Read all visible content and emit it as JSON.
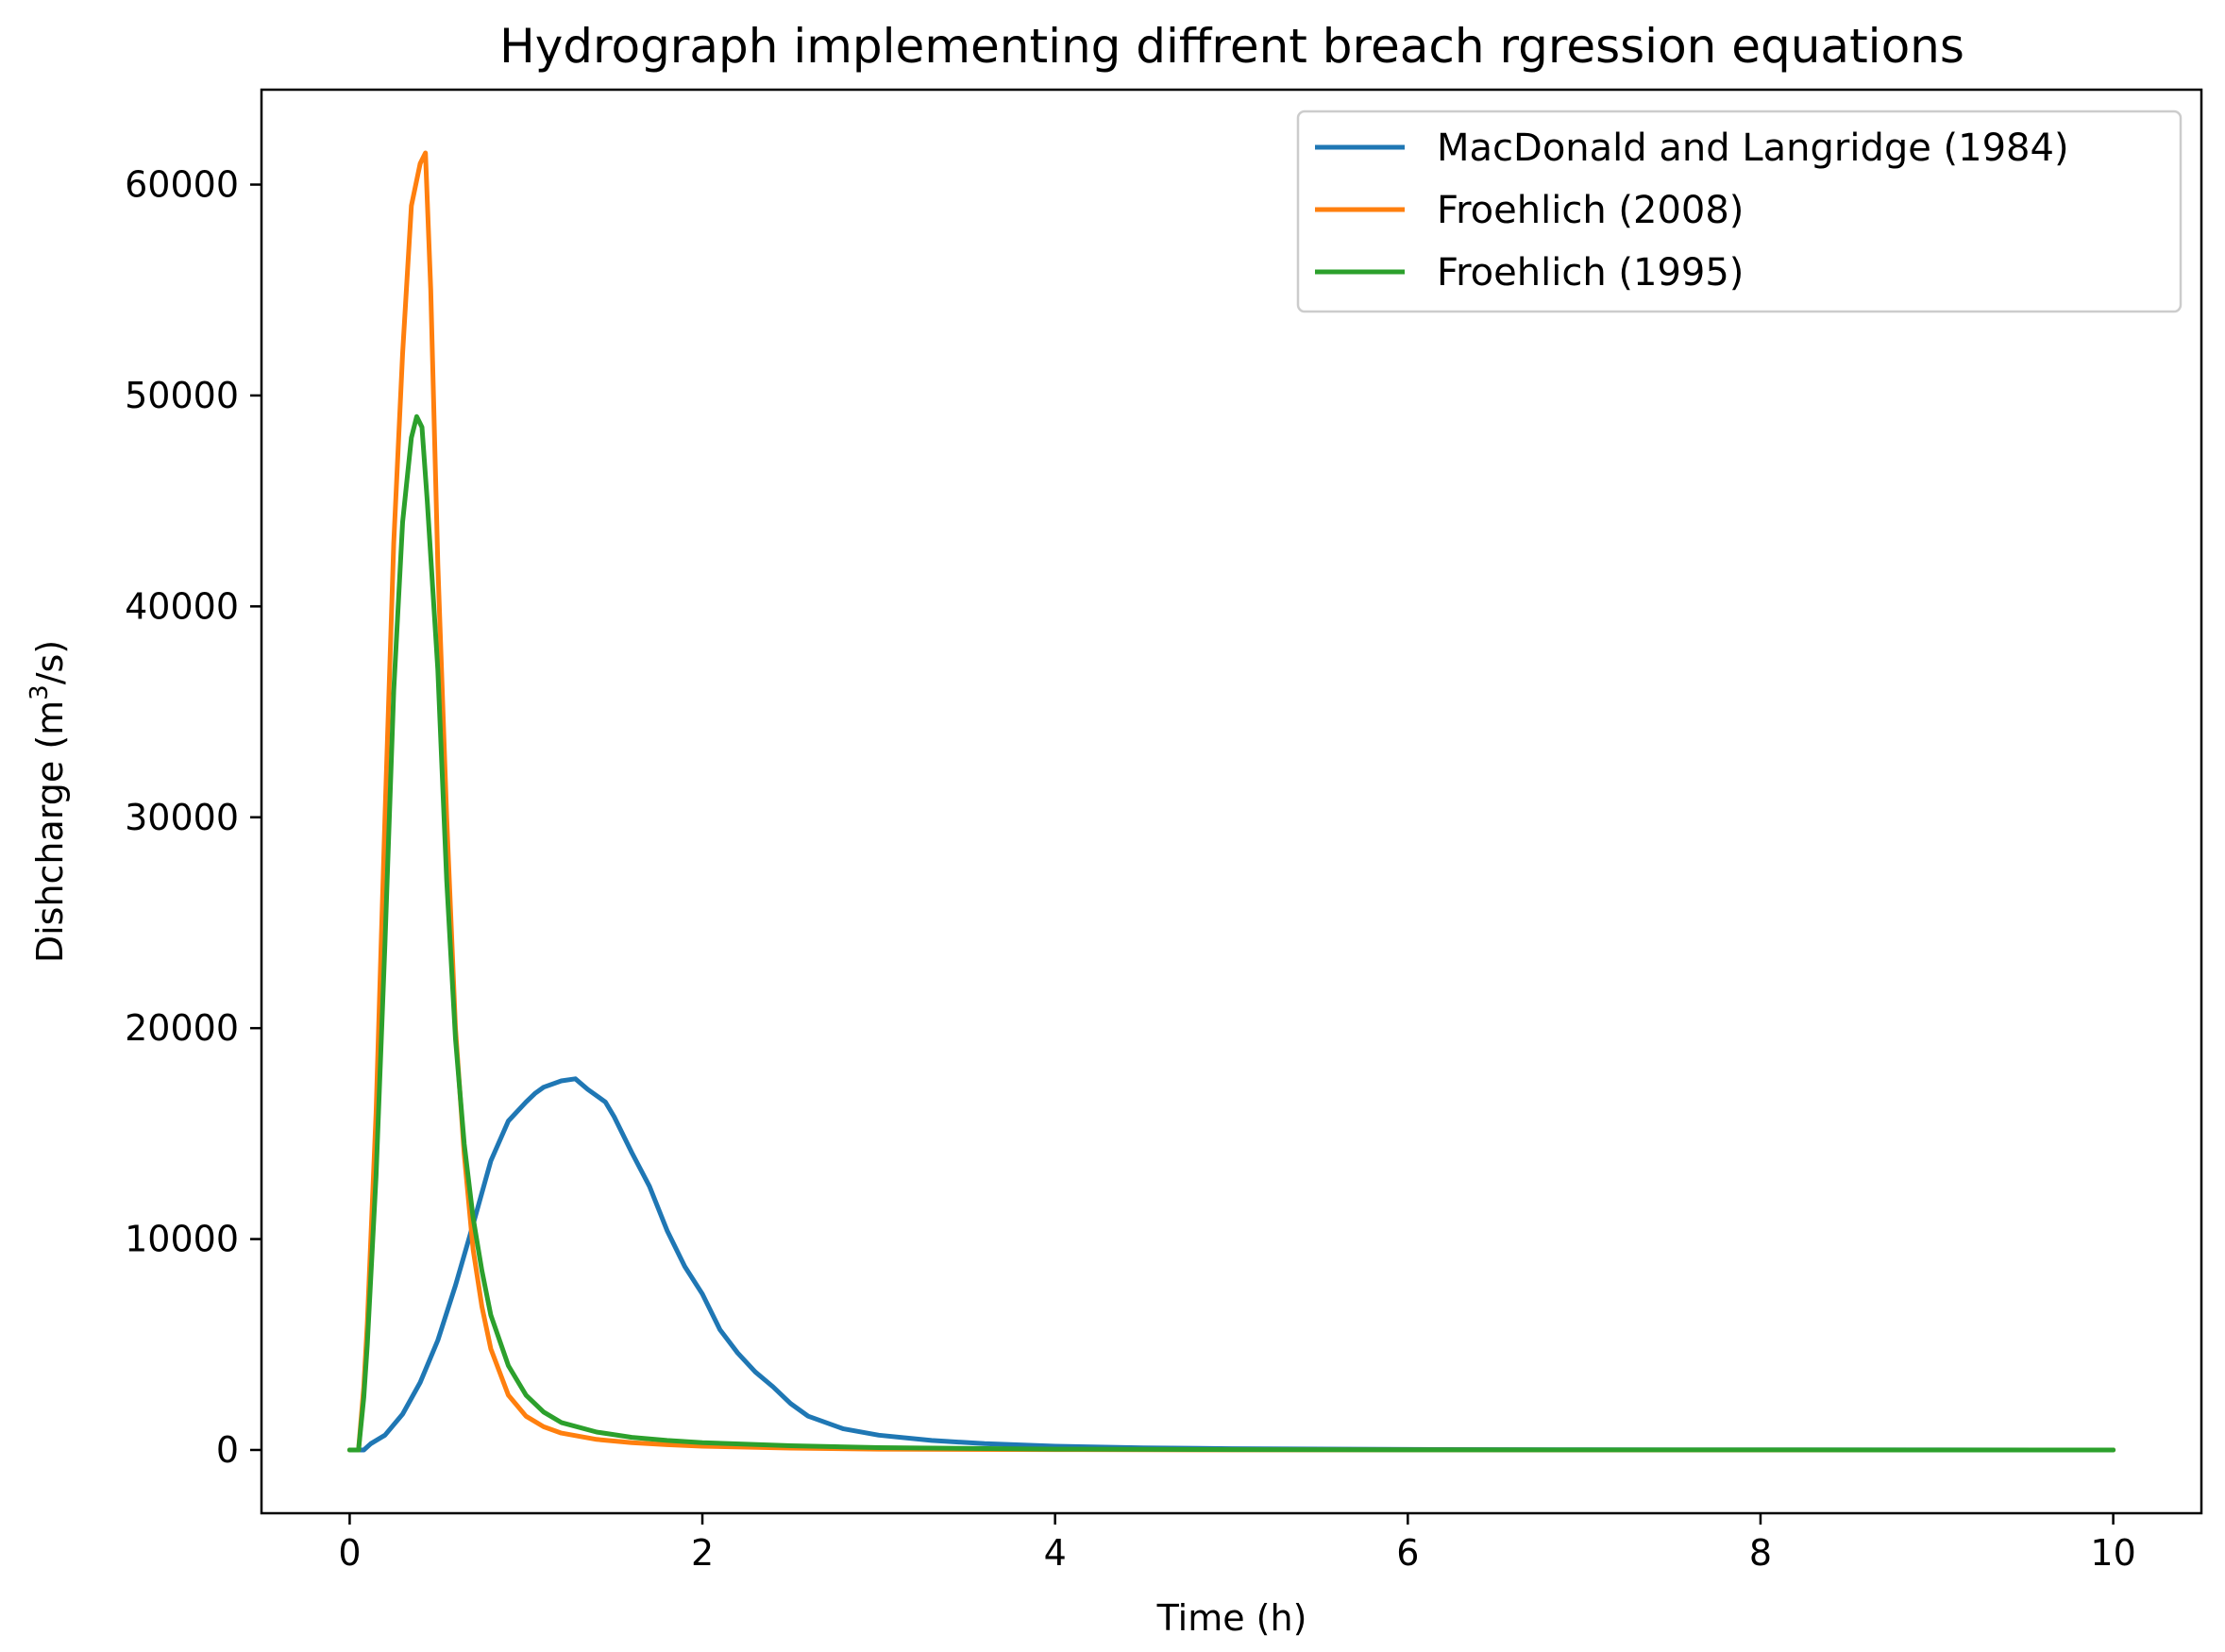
{
  "chart_data": {
    "type": "line",
    "title": "Hydrograph implementing diffrent breach rgression equations",
    "xlabel": "Time (h)",
    "ylabel": "Dishcharge (m",
    "ylabel_superscript": "3",
    "ylabel_suffix": "/s)",
    "xlim": [
      -0.5,
      10.5
    ],
    "ylim": [
      -3000,
      64500
    ],
    "xticks": [
      0,
      2,
      4,
      6,
      8,
      10
    ],
    "yticks": [
      0,
      10000,
      20000,
      30000,
      40000,
      50000,
      60000
    ],
    "grid": false,
    "legend_position": "top-right",
    "series": [
      {
        "name": "MacDonald and Langridge (1984)",
        "color": "#1f77b4",
        "x": [
          0,
          0.08,
          0.12,
          0.2,
          0.3,
          0.4,
          0.5,
          0.6,
          0.7,
          0.8,
          0.9,
          1.0,
          1.05,
          1.1,
          1.2,
          1.28,
          1.35,
          1.45,
          1.5,
          1.6,
          1.7,
          1.8,
          1.9,
          2.0,
          2.1,
          2.2,
          2.3,
          2.4,
          2.5,
          2.6,
          2.8,
          3.0,
          3.3,
          3.6,
          4.0,
          4.5,
          5.0,
          6.0,
          7.0,
          8.0,
          9.0,
          10.0
        ],
        "y": [
          0,
          0,
          300,
          700,
          1700,
          3200,
          5200,
          7800,
          10700,
          13700,
          15600,
          16500,
          16900,
          17200,
          17500,
          17600,
          17100,
          16500,
          15800,
          14100,
          12500,
          10400,
          8700,
          7400,
          5700,
          4600,
          3700,
          3000,
          2200,
          1600,
          1000,
          700,
          450,
          300,
          180,
          100,
          60,
          25,
          10,
          5,
          2,
          0
        ]
      },
      {
        "name": "Froehlich (2008)",
        "color": "#ff7f0e",
        "x": [
          0,
          0.05,
          0.08,
          0.1,
          0.15,
          0.2,
          0.25,
          0.3,
          0.35,
          0.4,
          0.43,
          0.46,
          0.5,
          0.55,
          0.6,
          0.65,
          0.7,
          0.75,
          0.8,
          0.9,
          1.0,
          1.1,
          1.2,
          1.4,
          1.6,
          1.8,
          2.0,
          2.5,
          3.0,
          4.0,
          5.0,
          6.0,
          8.0,
          10.0
        ],
        "y": [
          0,
          0,
          3000,
          6000,
          16000,
          30000,
          43000,
          52000,
          59000,
          61000,
          61500,
          55000,
          42000,
          30000,
          20000,
          14000,
          9500,
          6800,
          4800,
          2600,
          1600,
          1100,
          800,
          500,
          350,
          250,
          180,
          90,
          40,
          15,
          5,
          2,
          0,
          0
        ]
      },
      {
        "name": "Froehlich (1995)",
        "color": "#2ca02c",
        "x": [
          0,
          0.05,
          0.08,
          0.1,
          0.15,
          0.2,
          0.25,
          0.3,
          0.35,
          0.38,
          0.41,
          0.44,
          0.5,
          0.55,
          0.6,
          0.65,
          0.7,
          0.75,
          0.8,
          0.9,
          1.0,
          1.1,
          1.2,
          1.4,
          1.6,
          1.8,
          2.0,
          2.5,
          3.0,
          4.0,
          5.0,
          6.0,
          8.0,
          10.0
        ],
        "y": [
          0,
          0,
          2500,
          5000,
          13000,
          24000,
          36000,
          44000,
          48000,
          49000,
          48500,
          45000,
          37000,
          27000,
          19500,
          14500,
          11000,
          8500,
          6400,
          4000,
          2600,
          1800,
          1300,
          850,
          600,
          450,
          350,
          200,
          110,
          40,
          15,
          5,
          2,
          0
        ]
      }
    ]
  }
}
